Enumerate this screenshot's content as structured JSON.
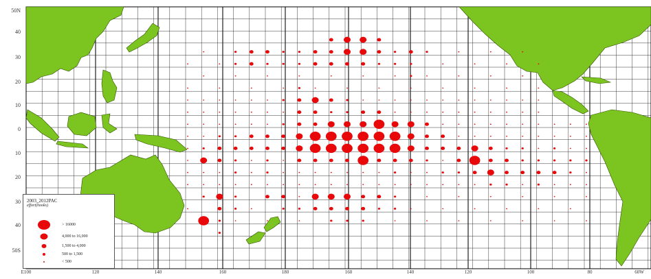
{
  "map": {
    "colors": {
      "land": "#7cc520",
      "land_outline": "#2f4f00",
      "ocean": "#ffffff",
      "grid": "#1e1e1e",
      "marker": "#e8080a"
    },
    "lat_labels": [
      "50N",
      "40",
      "30",
      "20",
      "10",
      "0",
      "10",
      "20",
      "30",
      "40",
      "50S"
    ],
    "lon_labels": [
      "E100",
      "120",
      "140",
      "160",
      "180",
      "160",
      "140",
      "120",
      "100",
      "80",
      "60W"
    ]
  },
  "legend": {
    "title": "2003_2012PAC",
    "subtitle": "effort(hooks)",
    "items": [
      {
        "label": "> 16000",
        "size_class": 5
      },
      {
        "label": "4,000 to 16,000",
        "size_class": 4
      },
      {
        "label": "1,500 to 4,000",
        "size_class": 3
      },
      {
        "label": "500 to 1,500",
        "size_class": 2
      },
      {
        "label": "< 500",
        "size_class": 1
      }
    ]
  }
}
